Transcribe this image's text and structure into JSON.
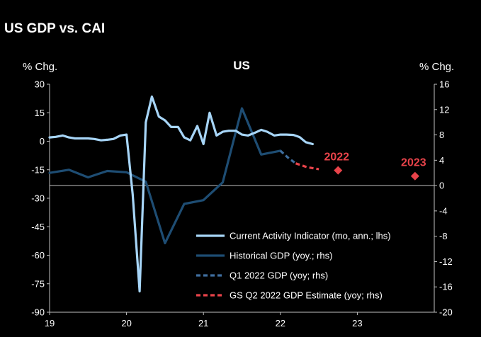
{
  "chart_data": {
    "type": "line",
    "title": "US GDP vs. CAI",
    "subtitle": "US",
    "ylabel_left": "% Chg.",
    "ylabel_right": "% Chg.",
    "y_left": {
      "min": -90,
      "max": 30,
      "ticks": [
        "30",
        "15",
        "0",
        "-15",
        "-30",
        "-45",
        "-60",
        "-75",
        "-90"
      ]
    },
    "y_right": {
      "min": -20,
      "max": 16,
      "ticks": [
        "16",
        "12",
        "8",
        "4",
        "0",
        "-4",
        "-8",
        "-12",
        "-16",
        "-20"
      ]
    },
    "x_axis": {
      "min": 2019.0,
      "max": 2024.0,
      "ticks": [
        "19",
        "20",
        "21",
        "22",
        "23"
      ]
    },
    "grid": false,
    "legend_position": "bottom-right",
    "colors": {
      "cai": "#a7d5f7",
      "gdp": "#1e4d73",
      "q1": "#3f6e9e",
      "gs": "#e8434a",
      "axis": "#bfbfbf"
    },
    "series": [
      {
        "name": "Current Activity Indicator (mo, ann.; lhs)",
        "axis": "left",
        "x": [
          2019.0,
          2019.08,
          2019.17,
          2019.25,
          2019.33,
          2019.42,
          2019.5,
          2019.58,
          2019.67,
          2019.75,
          2019.83,
          2019.92,
          2020.0,
          2020.08,
          2020.17,
          2020.25,
          2020.33,
          2020.42,
          2020.5,
          2020.58,
          2020.67,
          2020.75,
          2020.83,
          2020.92,
          2021.0,
          2021.08,
          2021.17,
          2021.25,
          2021.33,
          2021.42,
          2021.5,
          2021.58,
          2021.67,
          2021.75,
          2021.83,
          2021.92,
          2022.0,
          2022.08,
          2022.17,
          2022.25,
          2022.33,
          2022.42
        ],
        "values": [
          2,
          2.3,
          3,
          2,
          1.5,
          1.5,
          1.5,
          1.2,
          0.5,
          0.8,
          1.2,
          3,
          3.5,
          -28,
          -79,
          10,
          23.5,
          13,
          11,
          7.5,
          7.5,
          2,
          0.5,
          8,
          -1.5,
          15,
          3,
          5,
          5.5,
          5.5,
          3.5,
          3,
          4.5,
          6,
          5,
          3,
          3.5,
          3.5,
          3.3,
          2.2,
          -0.5,
          -1.5
        ]
      },
      {
        "name": "Historical GDP (yoy.; rhs)",
        "axis": "right",
        "x": [
          2019.0,
          2019.25,
          2019.5,
          2019.75,
          2020.0,
          2020.25,
          2020.5,
          2020.75,
          2021.0,
          2021.25,
          2021.5,
          2021.75,
          2022.0
        ],
        "values": [
          2.0,
          2.5,
          1.3,
          2.3,
          2.1,
          0.6,
          -9.1,
          -2.9,
          -2.3,
          0.5,
          12.2,
          4.9,
          5.5
        ]
      },
      {
        "name": "Q1 2022 GDP (yoy; rhs)",
        "axis": "right",
        "x": [
          2022.0,
          2022.1,
          2022.2
        ],
        "values": [
          5.5,
          4.4,
          3.5
        ]
      },
      {
        "name": "GS Q2 2022 GDP Estimate (yoy; rhs)",
        "axis": "right",
        "x": [
          2022.2,
          2022.35,
          2022.5
        ],
        "values": [
          3.5,
          2.9,
          2.6
        ]
      }
    ],
    "annotations": [
      {
        "label": "2022",
        "x": 2022.75,
        "value": 2.4,
        "axis": "right"
      },
      {
        "label": "2023",
        "x": 2023.75,
        "value": 1.5,
        "axis": "right"
      }
    ]
  }
}
